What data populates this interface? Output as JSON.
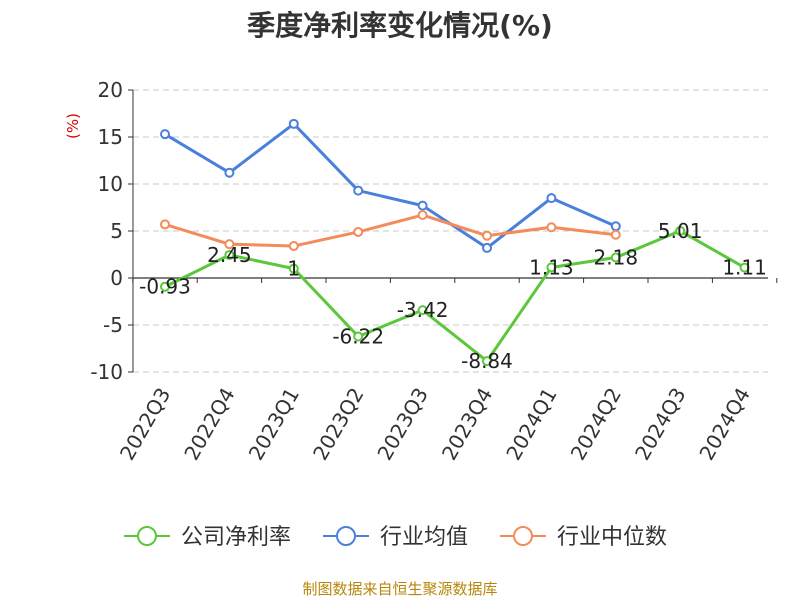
{
  "chart_data": {
    "type": "line",
    "title": "季度净利率变化情况(%)",
    "ylabel": "(%)",
    "ylim": [
      -10,
      20
    ],
    "yticks": [
      20,
      15,
      10,
      5,
      0,
      -5,
      -10
    ],
    "grid": true,
    "legend_position": "bottom",
    "categories": [
      "2022Q3",
      "2022Q4",
      "2023Q1",
      "2023Q2",
      "2023Q3",
      "2023Q4",
      "2024Q1",
      "2024Q2",
      "2024Q3",
      "2024Q4"
    ],
    "series": [
      {
        "name": "公司净利率",
        "color": "#5ac83a",
        "values": [
          -0.93,
          2.45,
          1,
          -6.22,
          -3.42,
          -8.84,
          1.13,
          2.18,
          5.01,
          1.11
        ],
        "labels": [
          "-0.93",
          "2.45",
          "1",
          "-6.22",
          "-3.42",
          "-8.84",
          "1.13",
          "2.18",
          "5.01",
          "1.11"
        ]
      },
      {
        "name": "行业均值",
        "color": "#4a7fdc",
        "values": [
          15.3,
          11.2,
          16.4,
          9.3,
          7.7,
          3.2,
          8.5,
          5.5,
          null,
          null
        ]
      },
      {
        "name": "行业中位数",
        "color": "#f28c5a",
        "values": [
          5.7,
          3.6,
          3.4,
          4.9,
          6.7,
          4.5,
          5.4,
          4.6,
          null,
          null
        ]
      }
    ]
  },
  "footer": {
    "source": "制图数据来自恒生聚源数据库"
  }
}
